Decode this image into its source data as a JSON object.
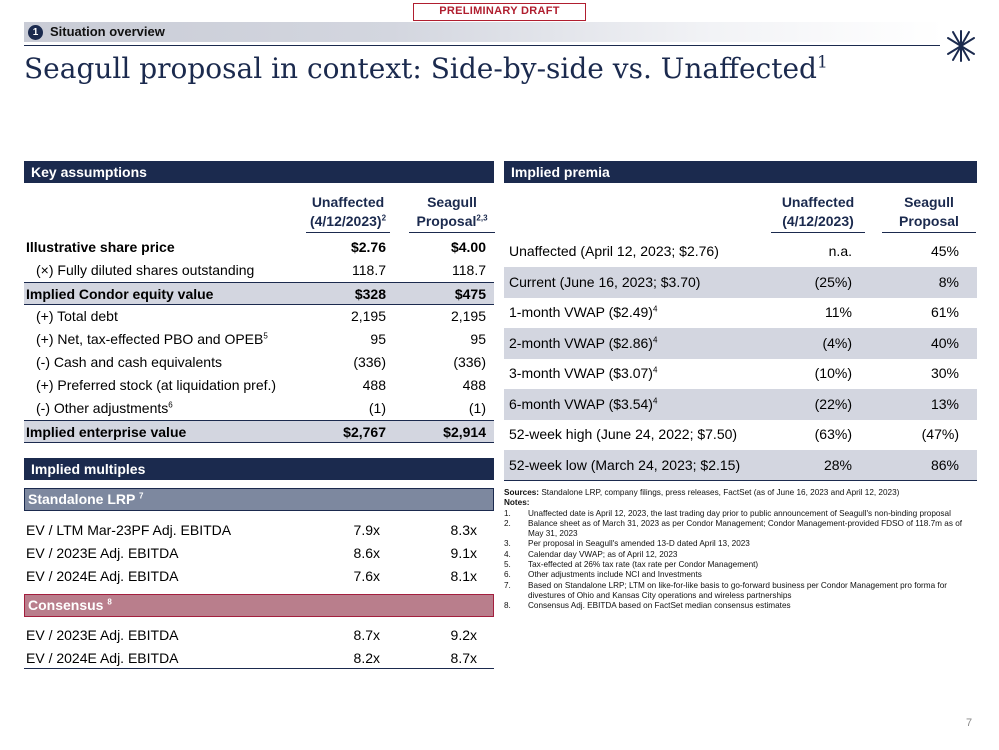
{
  "draft_stamp": "PRELIMINARY DRAFT",
  "section": {
    "number": "1",
    "label": "Situation overview"
  },
  "title": {
    "text": "Seagull proposal in context: Side-by-side vs. Unaffected",
    "footnote": "1"
  },
  "key_assumptions": {
    "header": "Key assumptions",
    "col1": {
      "line1": "Unaffected",
      "line2": "(4/12/2023)",
      "sup": "2"
    },
    "col2": {
      "line1": "Seagull",
      "line2": "Proposal",
      "sup": "2,3"
    },
    "rows": [
      {
        "label": "Illustrative share price",
        "sup": "",
        "v1": "$2.76",
        "v2": "$4.00"
      },
      {
        "label": "(×) Fully diluted shares outstanding",
        "sup": "",
        "v1": "118.7",
        "v2": "118.7"
      },
      {
        "label": "Implied Condor equity value",
        "sup": "",
        "v1": "$328",
        "v2": "$475"
      },
      {
        "label": "(+) Total debt",
        "sup": "",
        "v1": "2,195",
        "v2": "2,195"
      },
      {
        "label": "(+) Net, tax-effected PBO and OPEB",
        "sup": "5",
        "v1": "95",
        "v2": "95"
      },
      {
        "label": "(-) Cash and cash equivalents",
        "sup": "",
        "v1": "(336)",
        "v2": "(336)"
      },
      {
        "label": "(+) Preferred stock (at liquidation pref.)",
        "sup": "",
        "v1": "488",
        "v2": "488"
      },
      {
        "label": "(-) Other adjustments",
        "sup": "6",
        "v1": "(1)",
        "v2": "(1)"
      },
      {
        "label": "Implied enterprise value",
        "sup": "",
        "v1": "$2,767",
        "v2": "$2,914"
      }
    ]
  },
  "implied_multiples": {
    "header": "Implied multiples",
    "standalone": {
      "label": "Standalone LRP",
      "sup": "7",
      "rows": [
        {
          "label": "EV / LTM Mar-23PF Adj. EBITDA",
          "v1": "7.9x",
          "v2": "8.3x"
        },
        {
          "label": "EV / 2023E Adj. EBITDA",
          "v1": "8.6x",
          "v2": "9.1x"
        },
        {
          "label": "EV / 2024E Adj. EBITDA",
          "v1": "7.6x",
          "v2": "8.1x"
        }
      ]
    },
    "consensus": {
      "label": "Consensus",
      "sup": "8",
      "rows": [
        {
          "label": "EV / 2023E Adj. EBITDA",
          "v1": "8.7x",
          "v2": "9.2x"
        },
        {
          "label": "EV / 2024E Adj. EBITDA",
          "v1": "8.2x",
          "v2": "8.7x"
        }
      ]
    }
  },
  "implied_premia": {
    "header": "Implied premia",
    "col1": {
      "line1": "Unaffected",
      "line2": "(4/12/2023)"
    },
    "col2": {
      "line1": "Seagull",
      "line2": "Proposal"
    },
    "rows": [
      {
        "label": "Unaffected (April 12, 2023; $2.76)",
        "sup": "",
        "v1": "n.a.",
        "v2": "45%"
      },
      {
        "label": "Current (June 16, 2023; $3.70)",
        "sup": "",
        "v1": "(25%)",
        "v2": "8%"
      },
      {
        "label": "1-month VWAP ($2.49)",
        "sup": "4",
        "v1": "11%",
        "v2": "61%"
      },
      {
        "label": "2-month VWAP ($2.86)",
        "sup": "4",
        "v1": "(4%)",
        "v2": "40%"
      },
      {
        "label": "3-month VWAP ($3.07)",
        "sup": "4",
        "v1": "(10%)",
        "v2": "30%"
      },
      {
        "label": "6-month VWAP ($3.54)",
        "sup": "4",
        "v1": "(22%)",
        "v2": "13%"
      },
      {
        "label": "52-week high (June 24, 2022; $7.50)",
        "sup": "",
        "v1": "(63%)",
        "v2": "(47%)"
      },
      {
        "label": "52-week low (March 24, 2023; $2.15)",
        "sup": "",
        "v1": "28%",
        "v2": "86%"
      }
    ]
  },
  "sources": {
    "label": "Sources:",
    "text": "Standalone LRP, company filings, press releases, FactSet (as of June 16, 2023 and April 12, 2023)",
    "notes_label": "Notes:",
    "notes": [
      {
        "n": "1.",
        "text": "Unaffected date is April 12, 2023, the last trading day prior to public announcement of Seagull's non-binding proposal"
      },
      {
        "n": "2.",
        "text": "Balance sheet as of March 31, 2023 as per Condor Management; Condor Management-provided FDSO of 118.7m as of May 31, 2023"
      },
      {
        "n": "3.",
        "text": "Per proposal in Seagull's amended 13-D dated April 13, 2023"
      },
      {
        "n": "4.",
        "text": "Calendar day VWAP; as of April 12, 2023"
      },
      {
        "n": "5.",
        "text": "Tax-effected at 26% tax rate (tax rate per Condor Management)"
      },
      {
        "n": "6.",
        "text": "Other adjustments include NCI and Investments"
      },
      {
        "n": "7.",
        "text": "Based on Standalone LRP; LTM on like-for-like basis to go-forward business per Condor Management pro forma for divestures of Ohio and Kansas City operations and wireless partnerships"
      },
      {
        "n": "8.",
        "text": "Consensus Adj. EBITDA based on FactSet median consensus estimates"
      }
    ]
  },
  "page_number": "7",
  "colors": {
    "navy": "#1b2a4e",
    "shade": "#d3d6e0",
    "draft_red": "#b01e2f",
    "standalone": "#7d889f",
    "consensus": "#b97e8c"
  },
  "icons": {
    "logo": "snowflake-star-icon"
  }
}
